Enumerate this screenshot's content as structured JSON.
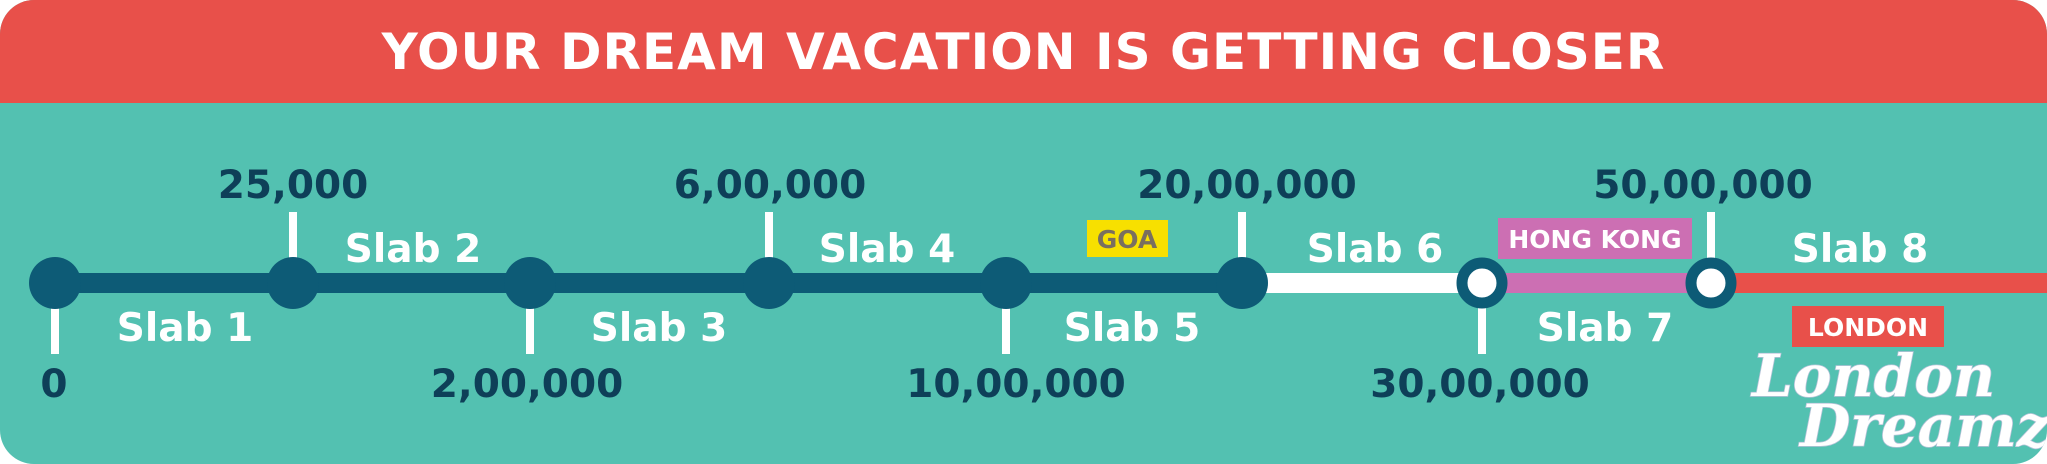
{
  "banner": {
    "title": "YOUR DREAM VACATION IS GETTING CLOSER"
  },
  "timeline": {
    "colors": {
      "dark": "#0d5b76",
      "white": "#ffffff",
      "pink": "#cc6fb3",
      "red": "#e8504a",
      "teal_bg": "#53c1b1",
      "goa_bg": "#f7e000",
      "goa_text": "#7a6f5f"
    },
    "milestones": [
      {
        "label": "0",
        "position": "below",
        "marker": "filled"
      },
      {
        "label": "25,000",
        "position": "above",
        "marker": "filled"
      },
      {
        "label": "2,00,000",
        "position": "below",
        "marker": "filled"
      },
      {
        "label": "6,00,000",
        "position": "above",
        "marker": "filled"
      },
      {
        "label": "10,00,000",
        "position": "below",
        "marker": "filled"
      },
      {
        "label": "20,00,000",
        "position": "above",
        "marker": "filled"
      },
      {
        "label": "30,00,000",
        "position": "below",
        "marker": "hollow"
      },
      {
        "label": "50,00,000",
        "position": "above",
        "marker": "hollow"
      }
    ],
    "slabs": [
      {
        "label": "Slab 1",
        "position": "below",
        "color": "dark"
      },
      {
        "label": "Slab 2",
        "position": "above",
        "color": "dark"
      },
      {
        "label": "Slab 3",
        "position": "below",
        "color": "dark"
      },
      {
        "label": "Slab 4",
        "position": "above",
        "color": "dark"
      },
      {
        "label": "Slab 5",
        "position": "below",
        "color": "dark"
      },
      {
        "label": "Slab 6",
        "position": "above",
        "color": "white"
      },
      {
        "label": "Slab 7",
        "position": "below",
        "color": "pink"
      },
      {
        "label": "Slab 8",
        "position": "above",
        "color": "red"
      }
    ],
    "destinations": [
      {
        "label": "GOA"
      },
      {
        "label": "HONG KONG"
      },
      {
        "label": "LONDON"
      }
    ]
  },
  "logo": {
    "line1": "London",
    "line2": "Dreamz"
  }
}
